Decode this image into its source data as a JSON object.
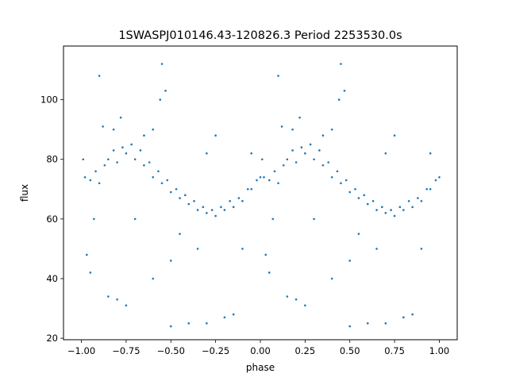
{
  "chart_data": {
    "type": "scatter",
    "title": "1SWASPJ010146.43-120826.3 Period 2253530.0s",
    "xlabel": "phase",
    "ylabel": "flux",
    "xlim": [
      -1.1,
      1.1
    ],
    "ylim": [
      19.5,
      118
    ],
    "xticks": [
      {
        "value": -1.0,
        "label": "−1.00"
      },
      {
        "value": -0.75,
        "label": "−0.75"
      },
      {
        "value": -0.5,
        "label": "−0.50"
      },
      {
        "value": -0.25,
        "label": "−0.25"
      },
      {
        "value": 0.0,
        "label": "0.00"
      },
      {
        "value": 0.25,
        "label": "0.25"
      },
      {
        "value": 0.5,
        "label": "0.50"
      },
      {
        "value": 0.75,
        "label": "0.75"
      },
      {
        "value": 1.0,
        "label": "1.00"
      }
    ],
    "yticks": [
      {
        "value": 20,
        "label": "20"
      },
      {
        "value": 40,
        "label": "40"
      },
      {
        "value": 60,
        "label": "60"
      },
      {
        "value": 80,
        "label": "80"
      },
      {
        "value": 100,
        "label": "100"
      }
    ],
    "grid": false,
    "marker_color": "#1f77b4",
    "series": [
      {
        "name": "",
        "points": [
          [
            -0.98,
            74
          ],
          [
            -0.95,
            73
          ],
          [
            -0.92,
            76
          ],
          [
            -0.9,
            72
          ],
          [
            -0.87,
            78
          ],
          [
            -0.85,
            80
          ],
          [
            -0.82,
            83
          ],
          [
            -0.8,
            79
          ],
          [
            -0.77,
            84
          ],
          [
            -0.75,
            82
          ],
          [
            -0.72,
            85
          ],
          [
            -0.7,
            80
          ],
          [
            -0.67,
            83
          ],
          [
            -0.65,
            78
          ],
          [
            -0.62,
            79
          ],
          [
            -0.6,
            74
          ],
          [
            -0.57,
            76
          ],
          [
            -0.55,
            72
          ],
          [
            -0.52,
            73
          ],
          [
            -0.5,
            69
          ],
          [
            -0.47,
            70
          ],
          [
            -0.45,
            67
          ],
          [
            -0.42,
            68
          ],
          [
            -0.4,
            65
          ],
          [
            -0.37,
            66
          ],
          [
            -0.35,
            63
          ],
          [
            -0.32,
            64
          ],
          [
            -0.3,
            62
          ],
          [
            -0.27,
            63
          ],
          [
            -0.25,
            61
          ],
          [
            -0.22,
            64
          ],
          [
            -0.2,
            63
          ],
          [
            -0.17,
            66
          ],
          [
            -0.15,
            64
          ],
          [
            -0.12,
            67
          ],
          [
            -0.1,
            66
          ],
          [
            -0.07,
            70
          ],
          [
            -0.05,
            70
          ],
          [
            -0.02,
            73
          ],
          [
            0.0,
            74
          ],
          [
            0.02,
            74
          ],
          [
            0.05,
            73
          ],
          [
            0.08,
            76
          ],
          [
            0.1,
            72
          ],
          [
            0.13,
            78
          ],
          [
            0.15,
            80
          ],
          [
            0.18,
            83
          ],
          [
            0.2,
            79
          ],
          [
            0.23,
            84
          ],
          [
            0.25,
            82
          ],
          [
            0.28,
            85
          ],
          [
            0.3,
            80
          ],
          [
            0.33,
            83
          ],
          [
            0.35,
            78
          ],
          [
            0.38,
            79
          ],
          [
            0.4,
            74
          ],
          [
            0.43,
            76
          ],
          [
            0.45,
            72
          ],
          [
            0.48,
            73
          ],
          [
            0.5,
            69
          ],
          [
            0.53,
            70
          ],
          [
            0.55,
            67
          ],
          [
            0.58,
            68
          ],
          [
            0.6,
            65
          ],
          [
            0.63,
            66
          ],
          [
            0.65,
            63
          ],
          [
            0.68,
            64
          ],
          [
            0.7,
            62
          ],
          [
            0.73,
            63
          ],
          [
            0.75,
            61
          ],
          [
            0.78,
            64
          ],
          [
            0.8,
            63
          ],
          [
            0.83,
            66
          ],
          [
            0.85,
            64
          ],
          [
            0.88,
            67
          ],
          [
            0.9,
            66
          ],
          [
            0.93,
            70
          ],
          [
            0.95,
            70
          ],
          [
            0.98,
            73
          ],
          [
            1.0,
            74
          ],
          [
            -0.88,
            91
          ],
          [
            -0.82,
            90
          ],
          [
            -0.56,
            100
          ],
          [
            -0.55,
            112
          ],
          [
            -0.53,
            103
          ],
          [
            0.12,
            91
          ],
          [
            0.18,
            90
          ],
          [
            0.44,
            100
          ],
          [
            0.45,
            112
          ],
          [
            0.47,
            103
          ],
          [
            -0.5,
            46
          ],
          [
            0.5,
            46
          ],
          [
            -0.5,
            24
          ],
          [
            0.5,
            24
          ],
          [
            -0.95,
            42
          ],
          [
            0.05,
            42
          ],
          [
            -0.85,
            34
          ],
          [
            0.15,
            34
          ],
          [
            -0.8,
            33
          ],
          [
            0.2,
            33
          ],
          [
            -0.75,
            31
          ],
          [
            0.25,
            31
          ],
          [
            -0.4,
            25
          ],
          [
            0.6,
            25
          ],
          [
            -0.3,
            25
          ],
          [
            0.7,
            25
          ],
          [
            -0.2,
            27
          ],
          [
            0.8,
            27
          ],
          [
            -0.15,
            28
          ],
          [
            0.85,
            28
          ],
          [
            -0.97,
            48
          ],
          [
            0.03,
            48
          ],
          [
            -0.6,
            40
          ],
          [
            0.4,
            40
          ],
          [
            -0.9,
            108
          ],
          [
            0.1,
            108
          ],
          [
            -0.3,
            82
          ],
          [
            0.7,
            82
          ],
          [
            -0.1,
            50
          ],
          [
            0.9,
            50
          ],
          [
            -0.65,
            88
          ],
          [
            0.35,
            88
          ],
          [
            -0.45,
            55
          ],
          [
            0.55,
            55
          ],
          [
            -0.35,
            50
          ],
          [
            0.65,
            50
          ],
          [
            -0.05,
            82
          ],
          [
            0.95,
            82
          ],
          [
            -0.25,
            88
          ],
          [
            0.75,
            88
          ],
          [
            -0.7,
            60
          ],
          [
            0.3,
            60
          ],
          [
            -0.93,
            60
          ],
          [
            0.07,
            60
          ],
          [
            -0.6,
            90
          ],
          [
            0.4,
            90
          ],
          [
            -0.99,
            80
          ],
          [
            0.01,
            80
          ],
          [
            -0.78,
            94
          ],
          [
            0.22,
            94
          ]
        ]
      }
    ]
  }
}
